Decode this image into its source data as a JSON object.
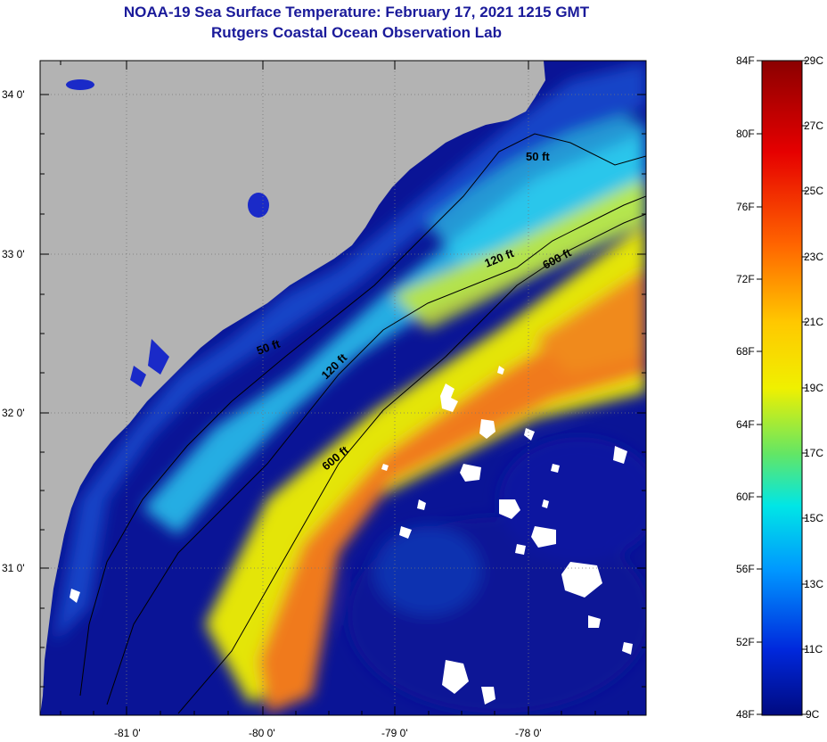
{
  "title": {
    "line1": "NOAA-19 Sea Surface Temperature:  February 17, 2021 1215 GMT",
    "line2": "Rutgers Coastal Ocean Observation Lab"
  },
  "map": {
    "lon_ticks": [
      "-81 0'",
      "-80 0'",
      "-79 0'",
      "-78 0'"
    ],
    "lat_ticks": [
      "34 0'",
      "33 0'",
      "32 0'",
      "31 0'"
    ],
    "contour_labels": [
      "50 ft",
      "120 ft",
      "600 ft",
      "50 ft",
      "120 ft",
      "600 ft"
    ],
    "colors": {
      "land": "#b3b3b3",
      "cold": "#0a1496",
      "cool": "#1e5adc",
      "mid": "#19c8f0",
      "warm": "#e6f028",
      "hot": "#f06e1e",
      "cloud": "#ffffff"
    }
  },
  "colorbar": {
    "fahrenheit_labels": [
      "84F",
      "80F",
      "76F",
      "72F",
      "68F",
      "64F",
      "60F",
      "56F",
      "52F",
      "48F"
    ],
    "celsius_labels": [
      "29C",
      "27C",
      "25C",
      "23C",
      "21C",
      "19C",
      "17C",
      "15C",
      "13C",
      "11C",
      "9C"
    ],
    "stops": [
      "#8b0000",
      "#e60000",
      "#ff6400",
      "#ffc800",
      "#f0f000",
      "#64e664",
      "#00e6e6",
      "#0096ff",
      "#0028dc",
      "#000a80"
    ]
  }
}
